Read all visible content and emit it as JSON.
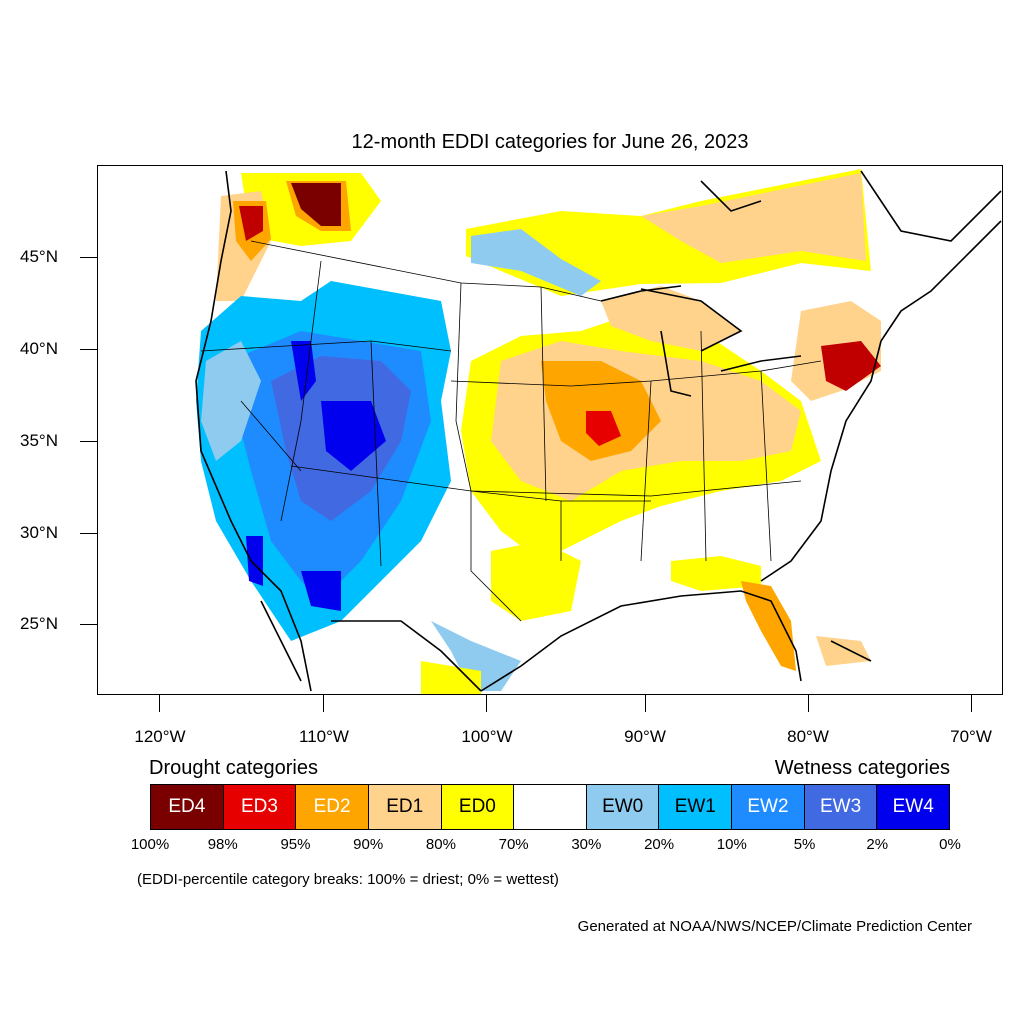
{
  "title": "12-month EDDI categories for June 26, 2023",
  "lat_labels": [
    "45°N",
    "40°N",
    "35°N",
    "30°N",
    "25°N"
  ],
  "lon_labels": [
    "120°W",
    "110°W",
    "100°W",
    "90°W",
    "80°W",
    "70°W"
  ],
  "legend": {
    "drought_title": "Drought categories",
    "wetness_title": "Wetness categories",
    "categories": [
      {
        "label": "ED4",
        "color": "#7a0000",
        "text_color": "#ffffff"
      },
      {
        "label": "ED3",
        "color": "#e60000",
        "text_color": "#ffffff"
      },
      {
        "label": "ED2",
        "color": "#ffa500",
        "text_color": "#ffffff"
      },
      {
        "label": "ED1",
        "color": "#ffd38c",
        "text_color": "#000000"
      },
      {
        "label": "ED0",
        "color": "#ffff00",
        "text_color": "#000000"
      },
      {
        "label": "",
        "color": "#ffffff",
        "text_color": "#000000"
      },
      {
        "label": "EW0",
        "color": "#8ecbee",
        "text_color": "#000000"
      },
      {
        "label": "EW1",
        "color": "#00bfff",
        "text_color": "#000000"
      },
      {
        "label": "EW2",
        "color": "#1e8cff",
        "text_color": "#ffffff"
      },
      {
        "label": "EW3",
        "color": "#4169e1",
        "text_color": "#ffffff"
      },
      {
        "label": "EW4",
        "color": "#0000ee",
        "text_color": "#ffffff"
      }
    ],
    "breaks": [
      "100%",
      "98%",
      "95%",
      "90%",
      "80%",
      "70%",
      "30%",
      "20%",
      "10%",
      "5%",
      "2%",
      "0%"
    ]
  },
  "note": "(EDDI-percentile category breaks: 100% = driest; 0% = wettest)",
  "credit": "Generated at NOAA/NWS/NCEP/Climate Prediction Center"
}
